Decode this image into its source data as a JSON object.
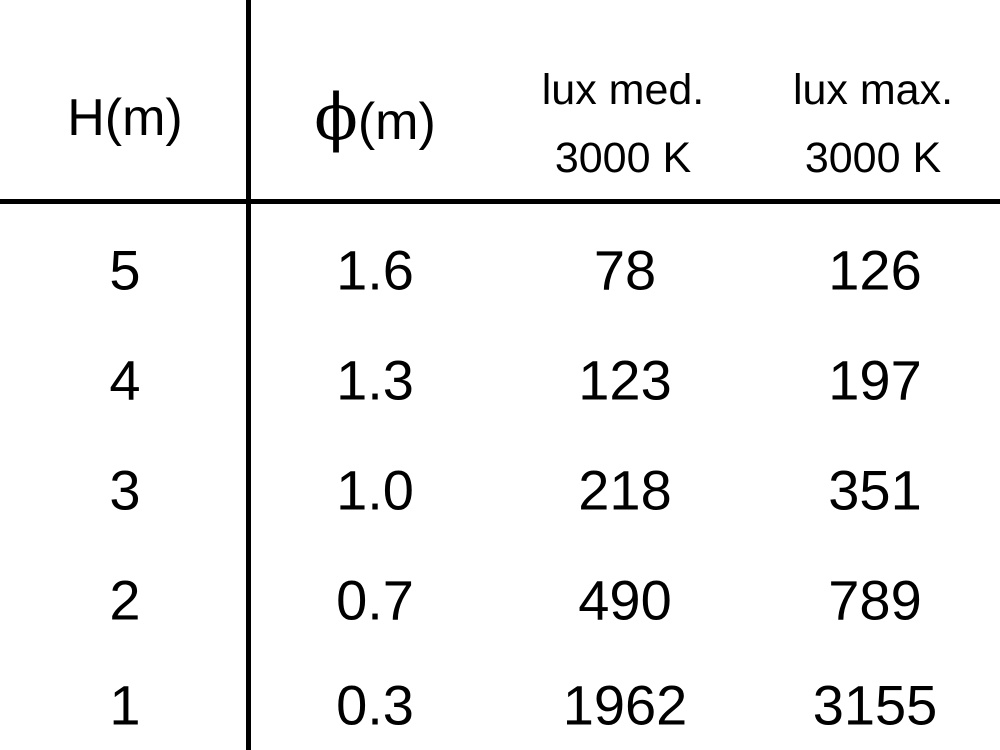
{
  "headers": [
    {
      "line1": "H(m)"
    },
    {
      "symbol": "ϕ",
      "unit": "(m)"
    },
    {
      "line1": "lux med.",
      "line2": "3000 K"
    },
    {
      "line1": "lux max.",
      "line2": "3000 K"
    }
  ],
  "rows": [
    [
      "5",
      "1.6",
      "78",
      "126"
    ],
    [
      "4",
      "1.3",
      "123",
      "197"
    ],
    [
      "3",
      "1.0",
      "218",
      "351"
    ],
    [
      "2",
      "0.7",
      "490",
      "789"
    ],
    [
      "1",
      "0.3",
      "1962",
      "3155"
    ]
  ]
}
